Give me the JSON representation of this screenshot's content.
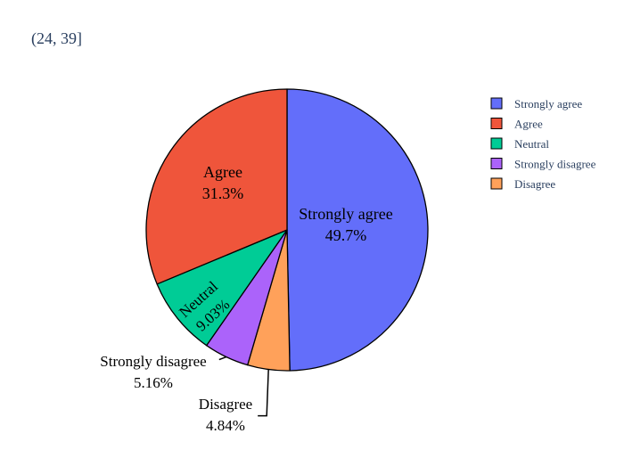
{
  "chart_data": {
    "type": "pie",
    "title": "(24, 39]",
    "slices": [
      {
        "label": "Strongly agree",
        "percent_label": "49.7%",
        "value": 49.7,
        "color": "#636efa"
      },
      {
        "label": "Disagree",
        "percent_label": "4.84%",
        "value": 4.84,
        "color": "#ffa15a"
      },
      {
        "label": "Strongly disagree",
        "percent_label": "5.16%",
        "value": 5.16,
        "color": "#ab63fa"
      },
      {
        "label": "Neutral",
        "percent_label": "9.03%",
        "value": 9.03,
        "color": "#00cc96"
      },
      {
        "label": "Agree",
        "percent_label": "31.3%",
        "value": 31.3,
        "color": "#ef553b"
      }
    ],
    "legend": {
      "placement": "top-right",
      "entries": [
        {
          "label": "Strongly agree",
          "color": "#636efa"
        },
        {
          "label": "Agree",
          "color": "#ef553b"
        },
        {
          "label": "Neutral",
          "color": "#00cc96"
        },
        {
          "label": "Strongly disagree",
          "color": "#ab63fa"
        },
        {
          "label": "Disagree",
          "color": "#ffa15a"
        }
      ]
    }
  }
}
